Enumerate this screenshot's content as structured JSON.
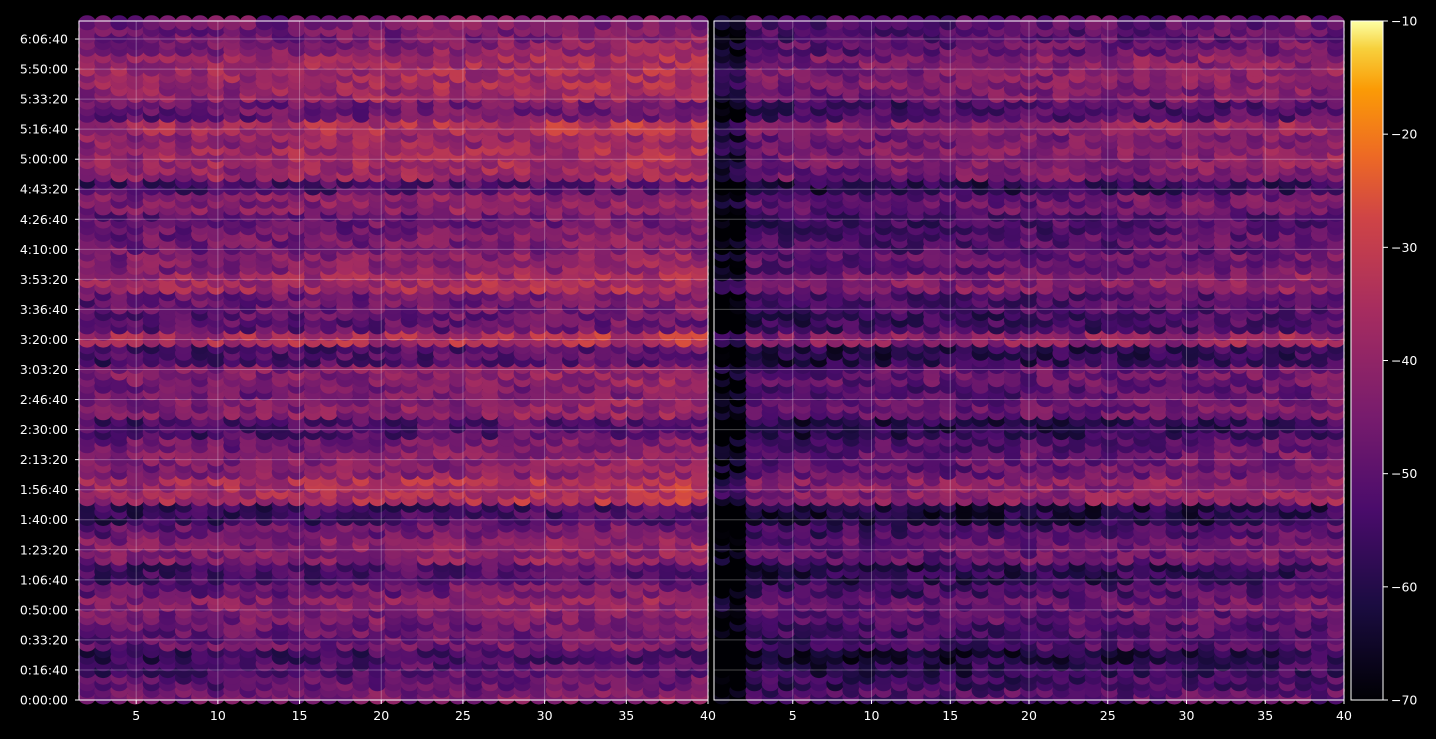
{
  "chart_data": {
    "type": "heatmap",
    "title": "",
    "xlabel": "",
    "ylabel": "",
    "panels": [
      {
        "name": "",
        "x_range": [
          1.5,
          40
        ],
        "x_ticks": [
          5,
          10,
          15,
          20,
          25,
          30,
          35,
          40
        ],
        "x_tick_labels": [
          "5",
          "10",
          "15",
          "20",
          "25",
          "30",
          "35",
          "40"
        ]
      },
      {
        "name": "",
        "x_range": [
          0,
          40
        ],
        "x_ticks": [
          5,
          10,
          15,
          20,
          25,
          30,
          35,
          40
        ],
        "x_tick_labels": [
          "5",
          "10",
          "15",
          "20",
          "25",
          "30",
          "35",
          "40"
        ]
      }
    ],
    "y_range_seconds": [
      0,
      22600
    ],
    "y_ticks_seconds": [
      0,
      1000,
      2000,
      3000,
      4000,
      5000,
      6000,
      7000,
      8000,
      9000,
      10000,
      11000,
      12000,
      13000,
      14000,
      15000,
      16000,
      17000,
      18000,
      19000,
      20000,
      21000,
      22000
    ],
    "y_tick_labels": [
      "0:00:00",
      "0:16:40",
      "0:33:20",
      "0:50:00",
      "1:06:40",
      "1:23:20",
      "1:40:00",
      "1:56:40",
      "2:13:20",
      "2:30:00",
      "2:46:40",
      "3:03:20",
      "3:20:00",
      "3:36:40",
      "3:53:20",
      "4:10:00",
      "4:26:40",
      "4:43:20",
      "5:00:00",
      "5:16:40",
      "5:33:20",
      "5:50:00",
      "6:06:40"
    ],
    "colorbar": {
      "colormap": "inferno",
      "range": [
        -70,
        -10
      ],
      "ticks": [
        -70,
        -60,
        -50,
        -40,
        -30,
        -20,
        -10
      ],
      "tick_labels": [
        "−70",
        "−60",
        "−50",
        "−40",
        "−30",
        "−20",
        "−10"
      ]
    },
    "grid": true,
    "row_intensity_profile": [
      {
        "y_seconds": 300,
        "level": -48
      },
      {
        "y_seconds": 700,
        "level": -52
      },
      {
        "y_seconds": 1100,
        "level": -55
      },
      {
        "y_seconds": 1500,
        "level": -58
      },
      {
        "y_seconds": 2200,
        "level": -50
      },
      {
        "y_seconds": 2900,
        "level": -47
      },
      {
        "y_seconds": 3300,
        "level": -45
      },
      {
        "y_seconds": 3700,
        "level": -50
      },
      {
        "y_seconds": 4300,
        "level": -55
      },
      {
        "y_seconds": 5100,
        "level": -45
      },
      {
        "y_seconds": 5700,
        "level": -50
      },
      {
        "y_seconds": 6200,
        "level": -58
      },
      {
        "y_seconds": 7100,
        "level": -38
      },
      {
        "y_seconds": 7900,
        "level": -45
      },
      {
        "y_seconds": 8600,
        "level": -48
      },
      {
        "y_seconds": 9100,
        "level": -55
      },
      {
        "y_seconds": 9900,
        "level": -45
      },
      {
        "y_seconds": 10400,
        "level": -48
      },
      {
        "y_seconds": 10900,
        "level": -45
      },
      {
        "y_seconds": 11600,
        "level": -55
      },
      {
        "y_seconds": 12000,
        "level": -38
      },
      {
        "y_seconds": 12700,
        "level": -52
      },
      {
        "y_seconds": 13300,
        "level": -50
      },
      {
        "y_seconds": 14100,
        "level": -40
      },
      {
        "y_seconds": 14600,
        "level": -45
      },
      {
        "y_seconds": 15200,
        "level": -48
      },
      {
        "y_seconds": 15900,
        "level": -50
      },
      {
        "y_seconds": 16500,
        "level": -45
      },
      {
        "y_seconds": 17200,
        "level": -55
      },
      {
        "y_seconds": 17700,
        "level": -42
      },
      {
        "y_seconds": 18100,
        "level": -40
      },
      {
        "y_seconds": 18700,
        "level": -42
      },
      {
        "y_seconds": 19200,
        "level": -38
      },
      {
        "y_seconds": 19700,
        "level": -50
      },
      {
        "y_seconds": 20300,
        "level": -42
      },
      {
        "y_seconds": 20800,
        "level": -40
      },
      {
        "y_seconds": 21200,
        "level": -40
      },
      {
        "y_seconds": 21700,
        "level": -45
      },
      {
        "y_seconds": 22200,
        "level": -48
      }
    ]
  }
}
